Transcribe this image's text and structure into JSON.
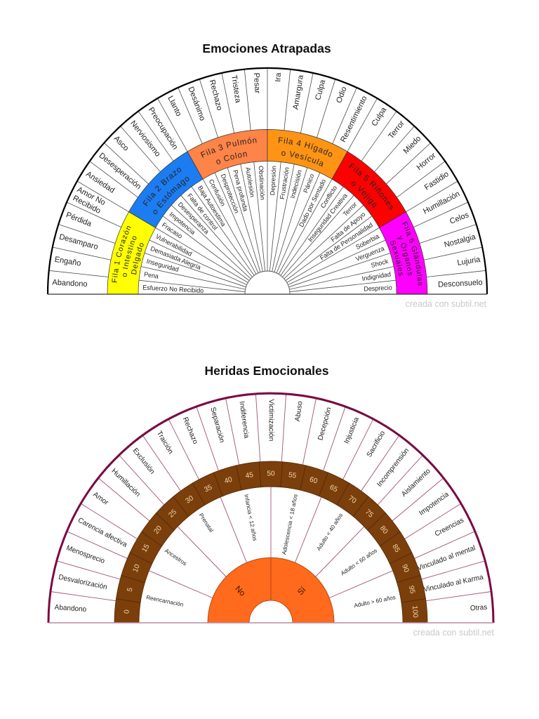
{
  "chart_data": [
    {
      "type": "pie",
      "variant": "semicircle-rings",
      "title": "Emociones Atrapadas",
      "watermark": "creada con subtil.net",
      "colors": {
        "outline": "#000000",
        "divider": "#4d4d4d",
        "label": "#222222",
        "band_text": "#262626"
      },
      "outer_ring": {
        "labels": [
          "Abandono",
          "Engaño",
          "Desamparo",
          "Pérdida",
          [
            "Amor No",
            "Recibido"
          ],
          "Ansiedad",
          "Desesperación",
          "Asco",
          "Nerviosismo",
          "Preocupación",
          "Llanto",
          "Desánimo",
          "Rechazo",
          "Tristeza",
          "Pesar",
          "Ira",
          "Amargura",
          "Culpa",
          "Odio",
          "Resentimiento",
          "Culpa",
          "Terror",
          "Miedo",
          "Horror",
          "Fastidio",
          "Humillación",
          "Celos",
          "Nostalgia",
          "Lujuria",
          "Desconsuelo"
        ]
      },
      "band": {
        "segments": [
          {
            "lines": [
              "Fila 1 Corazón",
              "o Intestino",
              "Delgado"
            ],
            "color": "#ffff00"
          },
          {
            "lines": [
              "Fila 2 Brazo",
              "o Estómago"
            ],
            "color": "#1c7cf2"
          },
          {
            "lines": [
              "Fila 3 Pulmón",
              "o Colon"
            ],
            "color": "#ff8447"
          },
          {
            "lines": [
              "Fila 4 Hígado",
              "o Vesícula"
            ],
            "color": "#ff9414"
          },
          {
            "lines": [
              "Fila 5 Riñones",
              "o Vejiga"
            ],
            "color": "#ff0000"
          },
          {
            "lines": [
              "Fila 6 Glándulas",
              "y Órganos",
              "Sexuales"
            ],
            "color": "#ff00ff"
          }
        ]
      },
      "inner_ring": {
        "labels": [
          "Esfuerzo No Recibido",
          "Pena",
          "Inseguridad",
          "Demasiada Alegría",
          "Vulnerabilidad",
          "Fracaso",
          "Impotencia",
          "Desesperanza",
          "Falta de control",
          "Baja Autoestima",
          "Confusión",
          "Desprotección",
          "Pena profunda",
          "Autolesión",
          "Obstinación",
          "Depresión",
          "Frustración",
          "Indecisión",
          "Pánico",
          "Dado por Sentado",
          "Conflicto",
          "Inseguridad Creativa",
          "Terror",
          "Falta de Apoyo",
          "Falta de Personalidad",
          "Soberbia",
          "Verguenza",
          "Shock",
          "Indignidad",
          "Desprecio"
        ]
      }
    },
    {
      "type": "pie",
      "variant": "semicircle-rings",
      "title": "Heridas Emocionales",
      "watermark": "creada con subtil.net",
      "colors": {
        "outline": "#7a0a43",
        "divider": "#a3527c",
        "baseline": "#b98aa4",
        "scale_band": "#7b3f0c",
        "scale_divider": "#552806",
        "scale_text": "#f3d6ad",
        "core": "#ff6a1c",
        "core_border": "#b2440f",
        "label": "#222222"
      },
      "outer_ring": {
        "labels": [
          "Abandono",
          "Desvalorización",
          "Menosprecio",
          "Carencia afectiva",
          "Amor",
          "Humillación",
          "Exclusión",
          "Traición",
          "Rechazo",
          "Separación",
          "Indiferencia",
          "Victimización",
          "Abuso",
          "Decepción",
          "Injusticia",
          "Sacrificio",
          "Incomprensión",
          "Aislamiento",
          "Impotencia",
          "Creencias",
          "Vinculado al mental",
          "Vinculado al Karma",
          "Otras"
        ]
      },
      "scale_ring": {
        "labels": [
          "0",
          "5",
          "10",
          "15",
          "20",
          "25",
          "30",
          "35",
          "40",
          "45",
          "50",
          "55",
          "60",
          "65",
          "70",
          "75",
          "80",
          "85",
          "90",
          "95",
          "100"
        ]
      },
      "inner_ring": {
        "labels": [
          "Reencarnación",
          "Ancestros",
          "Prenatal",
          "Infancia < 12 años",
          "Adolescencia < 18 años",
          "Adulto < 40 años",
          "Adulto < 60 años",
          "Adulto > 60 años"
        ]
      },
      "core": {
        "labels": [
          "No",
          "Sí"
        ]
      }
    }
  ]
}
